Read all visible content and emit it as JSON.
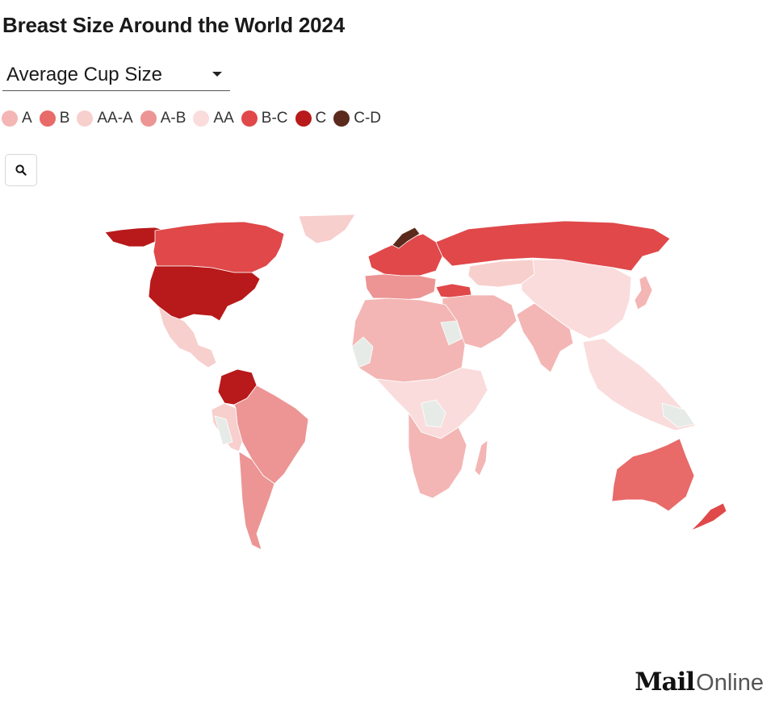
{
  "title": "Breast Size Around the World 2024",
  "dropdown": {
    "selected": "Average Cup Size"
  },
  "legend": [
    {
      "label": "A",
      "color": "#f3b6b4"
    },
    {
      "label": "B",
      "color": "#e86a69"
    },
    {
      "label": "AA-A",
      "color": "#f7cfcd"
    },
    {
      "label": "A-B",
      "color": "#ec9594"
    },
    {
      "label": "AA",
      "color": "#fadcdc"
    },
    {
      "label": "B-C",
      "color": "#e0484a"
    },
    {
      "label": "C",
      "color": "#b8191a"
    },
    {
      "label": "C-D",
      "color": "#5b2a1c"
    }
  ],
  "search": {
    "icon": "search-icon"
  },
  "map": {
    "no_data_color": "#e6ebe8",
    "regions": {
      "greenland": "AA-A",
      "alaska_canada_north": "C",
      "canada": "B-C",
      "usa": "C",
      "mexico_central_america": "AA-A",
      "venezuela_colombia": "C",
      "south_america_east": "A-B",
      "south_america_south": "A-B",
      "south_america_west": "AA-A",
      "europe_north": "B-C",
      "norway": "C-D",
      "europe_south": "A-B",
      "turkey": "B-C",
      "russia": "B-C",
      "central_asia": "AA-A",
      "middle_east": "A",
      "china_mongolia": "AA",
      "india_south_asia": "A",
      "southeast_asia": "AA",
      "japan": "A",
      "north_africa": "A",
      "central_africa": "AA",
      "southern_africa": "A",
      "madagascar": "A",
      "australia": "B",
      "new_zealand": "B-C"
    }
  },
  "logo": {
    "mail": "Mail",
    "online": "Online"
  }
}
